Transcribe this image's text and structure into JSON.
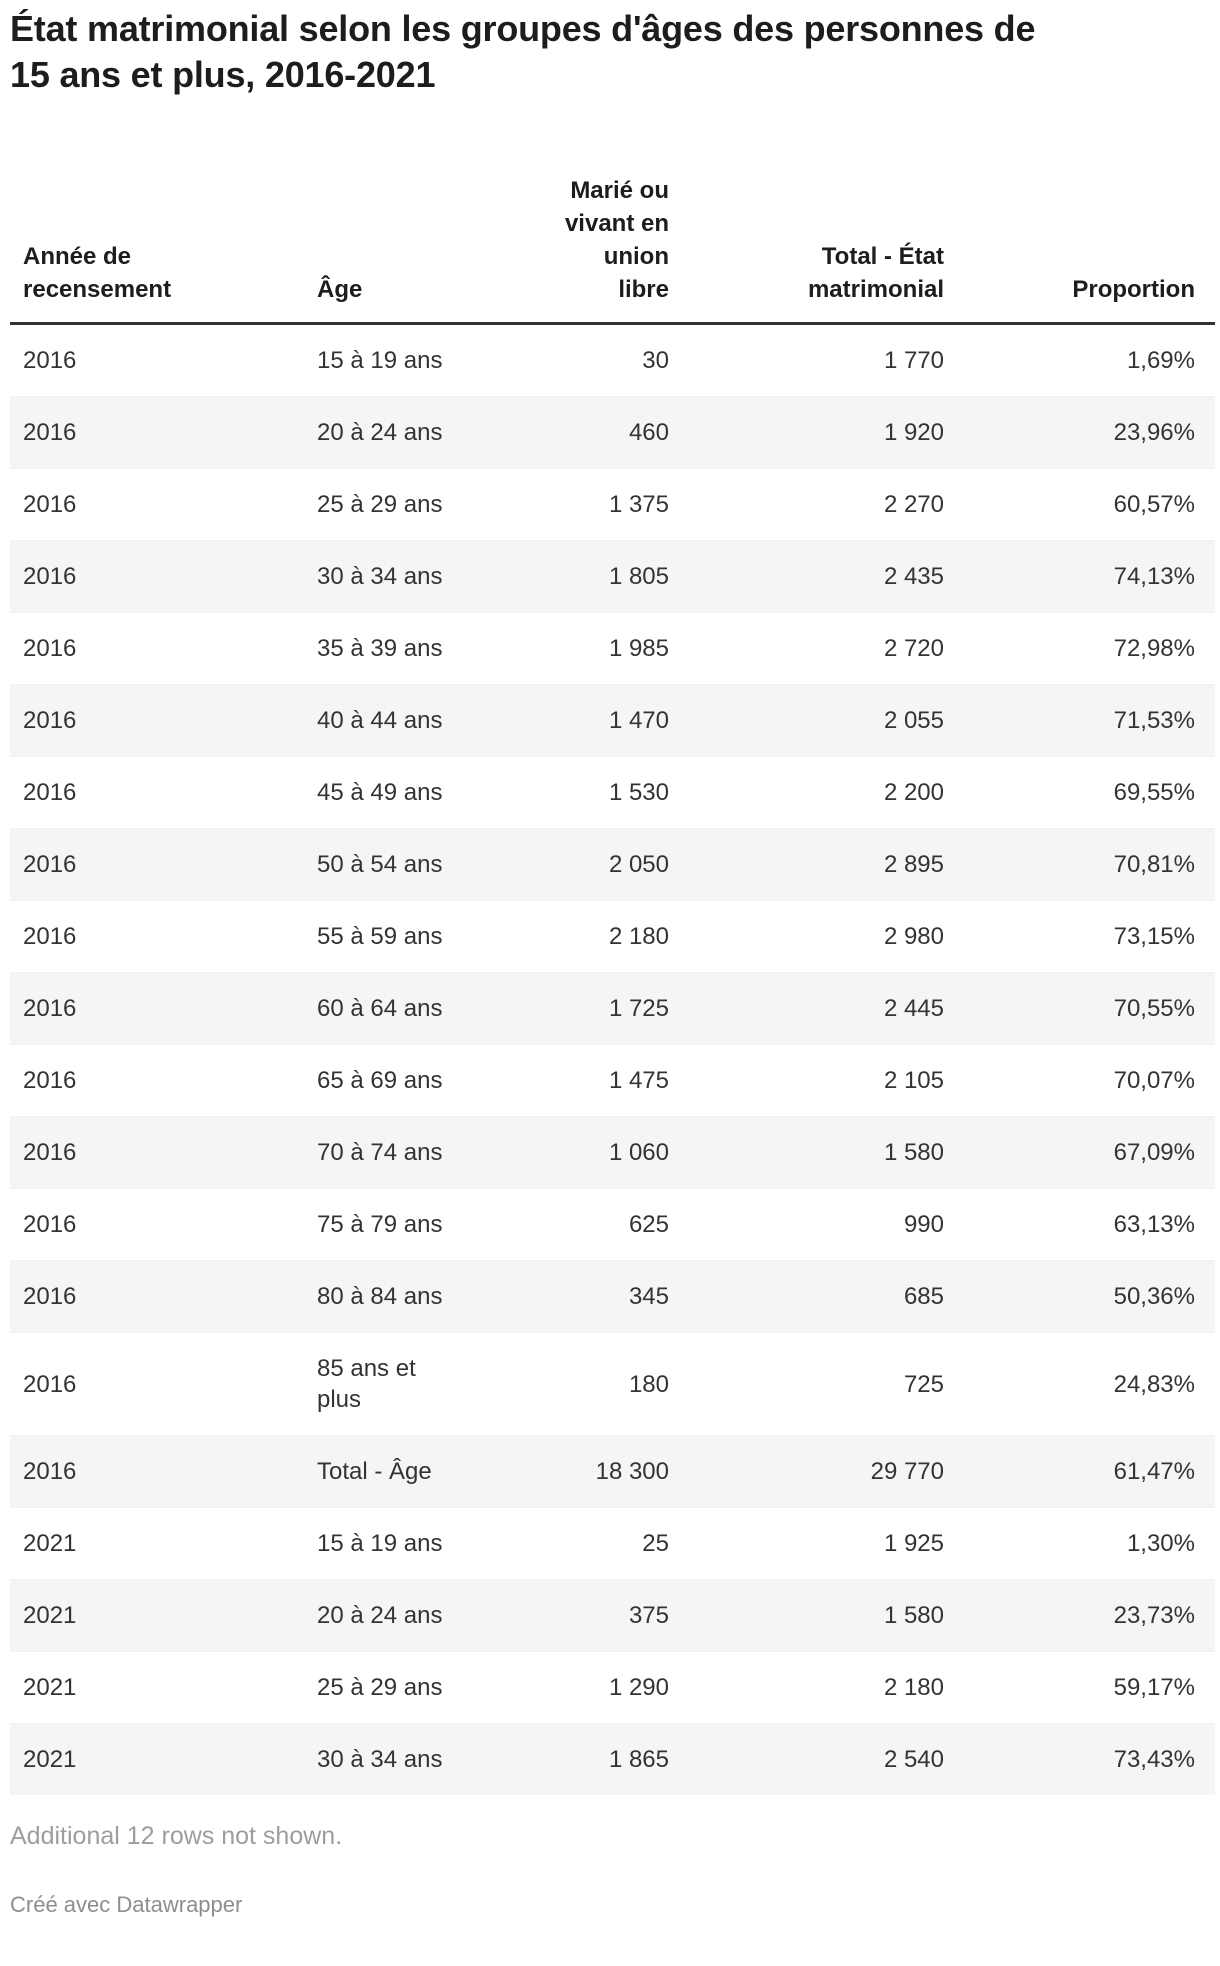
{
  "title": "État matrimonial selon les groupes d'âges des personnes de\n15 ans et plus, 2016-2021",
  "table": {
    "header_labels": [
      "Année de\nrecensement",
      "Âge",
      "Marié ou\nvivant en\nunion\nlibre",
      "Total - État\nmatrimonial",
      "Proportion"
    ]
  },
  "chart_data": {
    "type": "table",
    "title": "État matrimonial selon les groupes d'âges des personnes de 15 ans et plus, 2016-2021",
    "columns": [
      "Année de recensement",
      "Âge",
      "Marié ou vivant en union libre",
      "Total - État matrimonial",
      "Proportion"
    ],
    "rows": [
      [
        "2016",
        "15 à 19 ans",
        "30",
        "1 770",
        "1,69%"
      ],
      [
        "2016",
        "20 à 24 ans",
        "460",
        "1 920",
        "23,96%"
      ],
      [
        "2016",
        "25 à 29 ans",
        "1 375",
        "2 270",
        "60,57%"
      ],
      [
        "2016",
        "30 à 34 ans",
        "1 805",
        "2 435",
        "74,13%"
      ],
      [
        "2016",
        "35 à 39 ans",
        "1 985",
        "2 720",
        "72,98%"
      ],
      [
        "2016",
        "40 à 44 ans",
        "1 470",
        "2 055",
        "71,53%"
      ],
      [
        "2016",
        "45 à 49 ans",
        "1 530",
        "2 200",
        "69,55%"
      ],
      [
        "2016",
        "50 à 54 ans",
        "2 050",
        "2 895",
        "70,81%"
      ],
      [
        "2016",
        "55 à 59 ans",
        "2 180",
        "2 980",
        "73,15%"
      ],
      [
        "2016",
        "60 à 64 ans",
        "1 725",
        "2 445",
        "70,55%"
      ],
      [
        "2016",
        "65 à 69 ans",
        "1 475",
        "2 105",
        "70,07%"
      ],
      [
        "2016",
        "70 à 74 ans",
        "1 060",
        "1 580",
        "67,09%"
      ],
      [
        "2016",
        "75 à 79 ans",
        "625",
        "990",
        "63,13%"
      ],
      [
        "2016",
        "80 à 84 ans",
        "345",
        "685",
        "50,36%"
      ],
      [
        "2016",
        "85 ans et plus",
        "180",
        "725",
        "24,83%"
      ],
      [
        "2016",
        "Total - Âge",
        "18 300",
        "29 770",
        "61,47%"
      ],
      [
        "2021",
        "15 à 19 ans",
        "25",
        "1 925",
        "1,30%"
      ],
      [
        "2021",
        "20 à 24 ans",
        "375",
        "1 580",
        "23,73%"
      ],
      [
        "2021",
        "25 à 29 ans",
        "1 290",
        "2 180",
        "59,17%"
      ],
      [
        "2021",
        "30 à 34 ans",
        "1 865",
        "2 540",
        "73,43%"
      ]
    ]
  },
  "footer": {
    "more_rows_note": "Additional 12 rows not shown.",
    "credit": "Créé avec Datawrapper"
  },
  "colors": {
    "heading_text": "#1d1d1d",
    "body_text": "#333333",
    "header_rule": "#333333",
    "row_stripe": "#f5f5f5",
    "note_text": "#9d9d9d",
    "credit_text": "#8e8e8e"
  }
}
